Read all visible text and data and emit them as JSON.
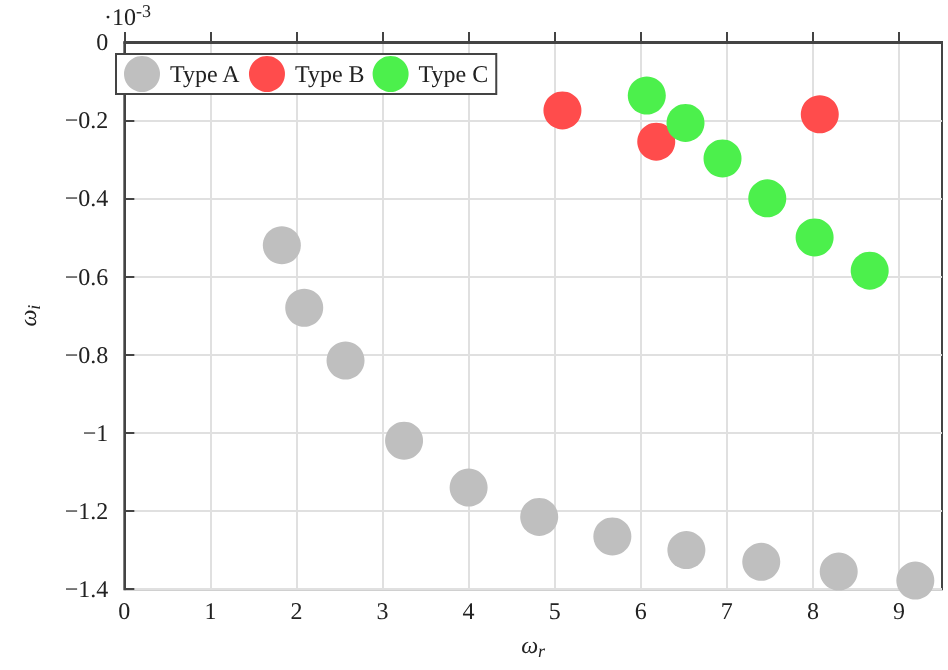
{
  "chart_data": {
    "type": "scatter",
    "xlabel": "ω$_{r}$",
    "ylabel": "ω$_{i}$",
    "annotations": [
      "·10$^{-3}$"
    ],
    "xlim": [
      0,
      9.5
    ],
    "xticks": [
      0,
      1,
      2,
      3,
      4,
      5,
      6,
      7,
      8,
      9
    ],
    "ylim": [
      -1.4,
      0
    ],
    "yticks": [
      -1.4,
      -1.2,
      -1,
      -0.8,
      -0.6,
      -0.4,
      -0.2,
      0
    ],
    "grid": true,
    "legend": "top left",
    "marker": "circle",
    "series": [
      {
        "name": "Type A",
        "color": "#bfbfbf",
        "x": [
          1.83,
          2.09,
          2.57,
          3.25,
          4.0,
          4.82,
          5.67,
          6.53,
          7.4,
          8.3,
          9.19
        ],
        "values": [
          -0.52,
          -0.68,
          -0.815,
          -1.02,
          -1.14,
          -1.215,
          -1.265,
          -1.3,
          -1.33,
          -1.355,
          -1.378
        ]
      },
      {
        "name": "Type B",
        "color": "#ff4c4c",
        "x": [
          5.09,
          6.18,
          8.08
        ],
        "values": [
          -0.175,
          -0.255,
          -0.185
        ]
      },
      {
        "name": "Type C",
        "color": "#4cf04c",
        "x": [
          6.07,
          6.52,
          6.95,
          7.47,
          8.02,
          8.66
        ],
        "values": [
          -0.137,
          -0.207,
          -0.298,
          -0.4,
          -0.5,
          -0.585
        ]
      }
    ]
  }
}
